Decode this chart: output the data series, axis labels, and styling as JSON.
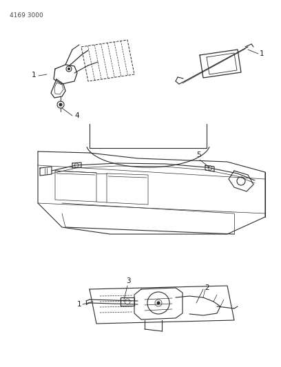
{
  "part_number": "4169 3000",
  "background_color": "#ffffff",
  "line_color": "#2a2a2a",
  "label_color": "#1a1a1a",
  "figsize": [
    4.08,
    5.33
  ],
  "dpi": 100
}
